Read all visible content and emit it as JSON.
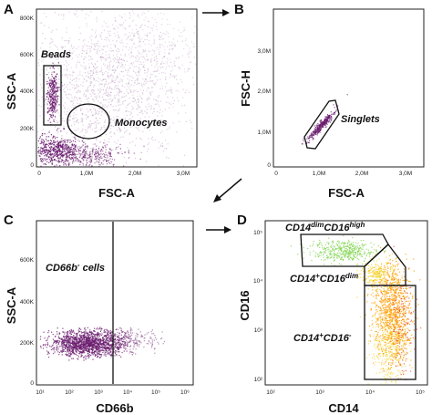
{
  "figure": {
    "panels": [
      {
        "letter": "A",
        "xlabel": "FSC-A",
        "ylabel": "SSC-A",
        "xticks": [
          "0",
          "1,0M",
          "2,0M",
          "3,0M"
        ],
        "yticks": [
          "0",
          "200K",
          "400K",
          "600K",
          "800K"
        ],
        "gates": {
          "beads": "Beads",
          "monocytes": "Monocytes"
        }
      },
      {
        "letter": "B",
        "xlabel": "FSC-A",
        "ylabel": "FSC-H",
        "xticks": [
          "0",
          "1,0M",
          "2,0M",
          "3,0M"
        ],
        "yticks": [
          "0",
          "1,0M",
          "2,0M",
          "3,0M"
        ],
        "gates": {
          "singlets": "Singlets"
        }
      },
      {
        "letter": "C",
        "xlabel": "CD66b",
        "ylabel": "SSC-A",
        "xticks": [
          "10¹",
          "10²",
          "10³",
          "10⁴",
          "10⁵",
          "10⁶"
        ],
        "yticks": [
          "0",
          "200K",
          "400K",
          "600K"
        ],
        "gates": {
          "cd66b_neg_base": "CD66b",
          "cd66b_neg_sup": "-",
          "cd66b_neg_rest": " cells"
        }
      },
      {
        "letter": "D",
        "xlabel": "CD14",
        "ylabel": "CD16",
        "xticks": [
          "10²",
          "10³",
          "10⁴",
          "10⁵"
        ],
        "yticks": [
          "10²",
          "10³",
          "10⁴",
          "10⁵"
        ],
        "gates": {
          "high_a": "CD14",
          "high_b": "dim",
          "high_c": "CD16",
          "high_d": "high",
          "dim_a": "CD14",
          "dim_b": "+",
          "dim_c": "CD16",
          "dim_d": "dim",
          "neg_a": "CD14",
          "neg_b": "+",
          "neg_c": "CD16",
          "neg_d": "-"
        }
      }
    ],
    "colors": {
      "purple": "#6a1b6e",
      "purple_light": "#b58fb8",
      "green": "#7cd34a",
      "orange": "#ff9a00",
      "yellow": "#f5d020",
      "red": "#e8401c"
    }
  }
}
